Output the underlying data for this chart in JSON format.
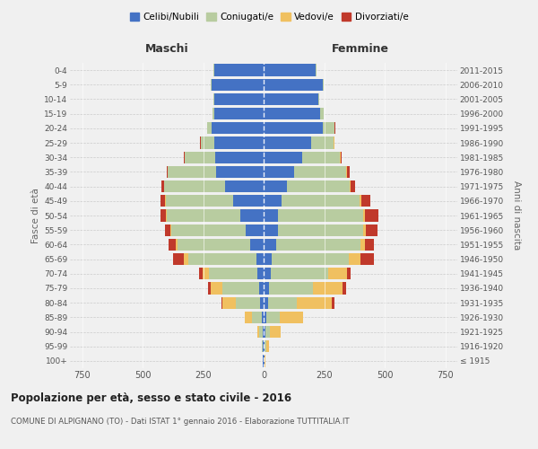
{
  "age_groups": [
    "100+",
    "95-99",
    "90-94",
    "85-89",
    "80-84",
    "75-79",
    "70-74",
    "65-69",
    "60-64",
    "55-59",
    "50-54",
    "45-49",
    "40-44",
    "35-39",
    "30-34",
    "25-29",
    "20-24",
    "15-19",
    "10-14",
    "5-9",
    "0-4"
  ],
  "birth_years": [
    "≤ 1915",
    "1916-1920",
    "1921-1925",
    "1926-1930",
    "1931-1935",
    "1936-1940",
    "1941-1945",
    "1946-1950",
    "1951-1955",
    "1956-1960",
    "1961-1965",
    "1966-1970",
    "1971-1975",
    "1976-1980",
    "1981-1985",
    "1986-1990",
    "1991-1995",
    "1996-2000",
    "2001-2005",
    "2006-2010",
    "2011-2015"
  ],
  "male": {
    "celibe": [
      2,
      3,
      5,
      8,
      15,
      20,
      25,
      30,
      55,
      75,
      95,
      125,
      160,
      195,
      200,
      205,
      215,
      205,
      205,
      215,
      205
    ],
    "coniugato": [
      2,
      4,
      12,
      40,
      100,
      150,
      200,
      280,
      300,
      305,
      305,
      280,
      250,
      200,
      125,
      55,
      18,
      5,
      2,
      2,
      2
    ],
    "vedovo": [
      0,
      1,
      8,
      28,
      55,
      50,
      28,
      18,
      8,
      5,
      5,
      3,
      2,
      1,
      1,
      1,
      0,
      0,
      0,
      0,
      0
    ],
    "divorziato": [
      0,
      0,
      1,
      2,
      5,
      8,
      12,
      45,
      28,
      22,
      22,
      18,
      9,
      4,
      2,
      1,
      1,
      0,
      0,
      0,
      0
    ]
  },
  "female": {
    "nubile": [
      2,
      4,
      8,
      12,
      18,
      22,
      28,
      32,
      50,
      60,
      60,
      75,
      95,
      125,
      160,
      195,
      245,
      235,
      225,
      245,
      215
    ],
    "coniugata": [
      2,
      6,
      18,
      55,
      120,
      180,
      240,
      320,
      350,
      350,
      350,
      320,
      260,
      215,
      155,
      95,
      48,
      14,
      5,
      3,
      3
    ],
    "vedova": [
      2,
      12,
      45,
      95,
      145,
      125,
      75,
      48,
      18,
      12,
      10,
      8,
      6,
      4,
      2,
      1,
      1,
      0,
      0,
      0,
      0
    ],
    "divorziata": [
      0,
      0,
      1,
      2,
      8,
      12,
      18,
      55,
      38,
      48,
      55,
      38,
      18,
      12,
      4,
      2,
      1,
      0,
      0,
      0,
      0
    ]
  },
  "colors": {
    "celibe": "#4472c4",
    "coniugato": "#b8cca0",
    "vedovo": "#f0c060",
    "divorziato": "#c0392b"
  },
  "legend_labels": [
    "Celibi/Nubili",
    "Coniugati/e",
    "Vedovi/e",
    "Divorziati/e"
  ],
  "title": "Popolazione per età, sesso e stato civile - 2016",
  "subtitle": "COMUNE DI ALPIGNANO (TO) - Dati ISTAT 1° gennaio 2016 - Elaborazione TUTTITALIA.IT",
  "xlabel_left": "Maschi",
  "xlabel_right": "Femmine",
  "ylabel_left": "Fasce di età",
  "ylabel_right": "Anni di nascita",
  "xlim": 800,
  "bg_color": "#f0f0f0"
}
